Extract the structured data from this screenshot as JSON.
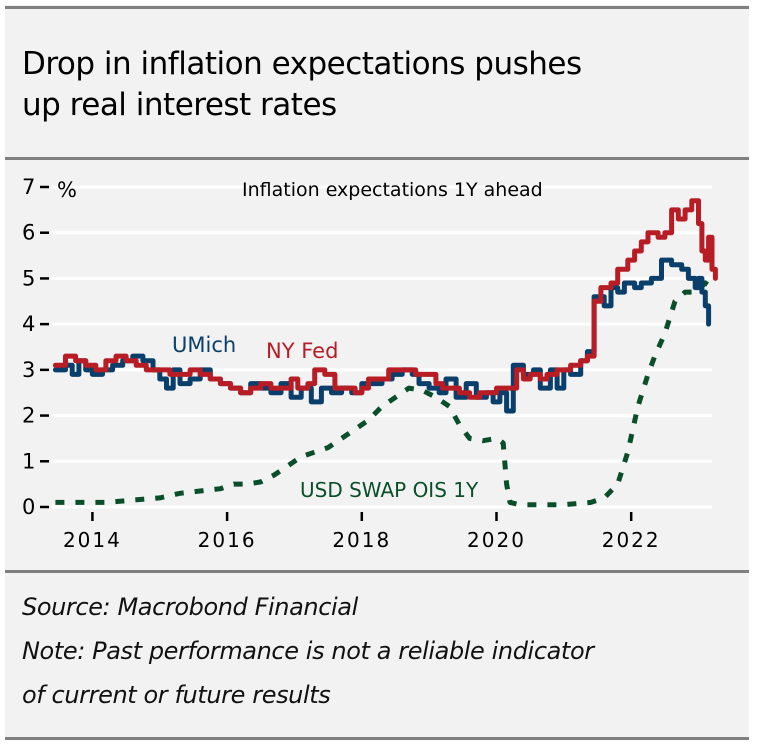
{
  "header": {
    "title_line1": "Drop in inflation expectations pushes",
    "title_line2": "up real interest rates"
  },
  "footer": {
    "source": "Source: Macrobond Financial",
    "note_line1": "Note: Past performance is not a reliable indicator",
    "note_line2": "of current or future results"
  },
  "colors": {
    "umich": "#0b3f6b",
    "nyfed": "#b81c25",
    "swap": "#0b4f2a",
    "grid": "#ffffff",
    "background": "#f2f2f2"
  },
  "chart_data": {
    "type": "line",
    "title": "Inflation expectations 1Y ahead",
    "ylabel": "%",
    "xlabel": "",
    "ylim": [
      0,
      7
    ],
    "xlim": [
      2013.4,
      2023.2
    ],
    "yticks": [
      0,
      1,
      2,
      3,
      4,
      5,
      6,
      7
    ],
    "ytick_labels": [
      "0",
      "1",
      "2",
      "3",
      "4",
      "5",
      "6",
      "7"
    ],
    "xticks": [
      2014,
      2016,
      2018,
      2020,
      2022
    ],
    "xtick_labels": [
      "2014",
      "2016",
      "2018",
      "2020",
      "2022"
    ],
    "grid": true,
    "legend": "inline-labels",
    "series": [
      {
        "name": "UMich",
        "style": "step",
        "points": [
          [
            2013.45,
            3.0
          ],
          [
            2013.6,
            3.1
          ],
          [
            2013.7,
            2.9
          ],
          [
            2013.8,
            3.2
          ],
          [
            2013.9,
            3.0
          ],
          [
            2014.0,
            2.9
          ],
          [
            2014.15,
            3.0
          ],
          [
            2014.3,
            3.1
          ],
          [
            2014.45,
            3.2
          ],
          [
            2014.6,
            3.3
          ],
          [
            2014.75,
            3.2
          ],
          [
            2014.9,
            3.0
          ],
          [
            2015.0,
            2.8
          ],
          [
            2015.1,
            2.6
          ],
          [
            2015.2,
            3.0
          ],
          [
            2015.3,
            2.7
          ],
          [
            2015.45,
            2.8
          ],
          [
            2015.6,
            3.0
          ],
          [
            2015.75,
            2.8
          ],
          [
            2015.9,
            2.7
          ],
          [
            2016.05,
            2.6
          ],
          [
            2016.2,
            2.5
          ],
          [
            2016.35,
            2.7
          ],
          [
            2016.5,
            2.6
          ],
          [
            2016.65,
            2.5
          ],
          [
            2016.8,
            2.7
          ],
          [
            2016.95,
            2.4
          ],
          [
            2017.1,
            2.6
          ],
          [
            2017.25,
            2.3
          ],
          [
            2017.4,
            2.6
          ],
          [
            2017.55,
            2.5
          ],
          [
            2017.7,
            2.6
          ],
          [
            2017.85,
            2.5
          ],
          [
            2018.0,
            2.7
          ],
          [
            2018.15,
            2.7
          ],
          [
            2018.3,
            2.8
          ],
          [
            2018.45,
            2.9
          ],
          [
            2018.6,
            3.0
          ],
          [
            2018.75,
            2.9
          ],
          [
            2018.85,
            2.7
          ],
          [
            2019.0,
            2.6
          ],
          [
            2019.15,
            2.5
          ],
          [
            2019.25,
            2.8
          ],
          [
            2019.4,
            2.4
          ],
          [
            2019.55,
            2.7
          ],
          [
            2019.7,
            2.4
          ],
          [
            2019.85,
            2.5
          ],
          [
            2019.95,
            2.3
          ],
          [
            2020.05,
            2.5
          ],
          [
            2020.15,
            2.1
          ],
          [
            2020.25,
            3.1
          ],
          [
            2020.4,
            2.9
          ],
          [
            2020.55,
            3.0
          ],
          [
            2020.65,
            2.6
          ],
          [
            2020.8,
            3.0
          ],
          [
            2020.9,
            2.6
          ],
          [
            2021.0,
            3.0
          ],
          [
            2021.1,
            2.9
          ],
          [
            2021.25,
            3.2
          ],
          [
            2021.35,
            3.4
          ],
          [
            2021.45,
            4.6
          ],
          [
            2021.6,
            4.4
          ],
          [
            2021.7,
            4.8
          ],
          [
            2021.8,
            4.7
          ],
          [
            2021.9,
            4.9
          ],
          [
            2022.05,
            4.8
          ],
          [
            2022.15,
            4.9
          ],
          [
            2022.3,
            5.0
          ],
          [
            2022.45,
            5.4
          ],
          [
            2022.6,
            5.3
          ],
          [
            2022.75,
            5.2
          ],
          [
            2022.85,
            5.0
          ],
          [
            2022.95,
            4.8
          ],
          [
            2023.0,
            5.0
          ],
          [
            2023.05,
            4.7
          ],
          [
            2023.1,
            4.4
          ],
          [
            2023.15,
            4.0
          ]
        ]
      },
      {
        "name": "NY Fed",
        "style": "step",
        "points": [
          [
            2013.45,
            3.1
          ],
          [
            2013.6,
            3.3
          ],
          [
            2013.75,
            3.2
          ],
          [
            2013.9,
            3.1
          ],
          [
            2014.05,
            3.0
          ],
          [
            2014.2,
            3.2
          ],
          [
            2014.35,
            3.3
          ],
          [
            2014.5,
            3.2
          ],
          [
            2014.65,
            3.1
          ],
          [
            2014.8,
            3.0
          ],
          [
            2015.0,
            3.0
          ],
          [
            2015.15,
            2.9
          ],
          [
            2015.3,
            2.9
          ],
          [
            2015.45,
            3.0
          ],
          [
            2015.6,
            2.9
          ],
          [
            2015.75,
            2.8
          ],
          [
            2015.9,
            2.7
          ],
          [
            2016.05,
            2.6
          ],
          [
            2016.2,
            2.5
          ],
          [
            2016.35,
            2.6
          ],
          [
            2016.5,
            2.7
          ],
          [
            2016.65,
            2.6
          ],
          [
            2016.8,
            2.6
          ],
          [
            2016.95,
            2.8
          ],
          [
            2017.05,
            2.6
          ],
          [
            2017.2,
            2.7
          ],
          [
            2017.3,
            3.0
          ],
          [
            2017.45,
            2.9
          ],
          [
            2017.6,
            2.6
          ],
          [
            2017.75,
            2.6
          ],
          [
            2017.9,
            2.5
          ],
          [
            2018.0,
            2.6
          ],
          [
            2018.1,
            2.8
          ],
          [
            2018.25,
            2.8
          ],
          [
            2018.4,
            3.0
          ],
          [
            2018.6,
            3.0
          ],
          [
            2018.8,
            2.9
          ],
          [
            2019.0,
            2.9
          ],
          [
            2019.1,
            2.7
          ],
          [
            2019.2,
            2.6
          ],
          [
            2019.35,
            2.6
          ],
          [
            2019.45,
            2.5
          ],
          [
            2019.6,
            2.4
          ],
          [
            2019.75,
            2.5
          ],
          [
            2019.9,
            2.5
          ],
          [
            2020.0,
            2.6
          ],
          [
            2020.1,
            2.6
          ],
          [
            2020.2,
            2.6
          ],
          [
            2020.3,
            3.0
          ],
          [
            2020.4,
            2.8
          ],
          [
            2020.5,
            2.9
          ],
          [
            2020.65,
            2.8
          ],
          [
            2020.75,
            2.9
          ],
          [
            2020.9,
            3.0
          ],
          [
            2021.0,
            3.0
          ],
          [
            2021.1,
            3.1
          ],
          [
            2021.25,
            3.2
          ],
          [
            2021.35,
            3.3
          ],
          [
            2021.45,
            4.5
          ],
          [
            2021.55,
            4.8
          ],
          [
            2021.7,
            4.9
          ],
          [
            2021.8,
            5.2
          ],
          [
            2021.95,
            5.4
          ],
          [
            2022.05,
            5.6
          ],
          [
            2022.15,
            5.8
          ],
          [
            2022.25,
            6.0
          ],
          [
            2022.4,
            5.9
          ],
          [
            2022.5,
            6.0
          ],
          [
            2022.6,
            6.5
          ],
          [
            2022.7,
            6.3
          ],
          [
            2022.8,
            6.5
          ],
          [
            2022.9,
            6.7
          ],
          [
            2023.0,
            6.2
          ],
          [
            2023.05,
            5.6
          ],
          [
            2023.1,
            5.4
          ],
          [
            2023.15,
            5.9
          ],
          [
            2023.2,
            5.2
          ],
          [
            2023.25,
            5.0
          ]
        ]
      },
      {
        "name": "USD SWAP OIS 1Y",
        "style": "dashed",
        "points": [
          [
            2013.45,
            0.1
          ],
          [
            2013.8,
            0.1
          ],
          [
            2014.2,
            0.1
          ],
          [
            2014.6,
            0.15
          ],
          [
            2015.0,
            0.2
          ],
          [
            2015.3,
            0.3
          ],
          [
            2015.6,
            0.35
          ],
          [
            2015.9,
            0.4
          ],
          [
            2016.1,
            0.5
          ],
          [
            2016.3,
            0.5
          ],
          [
            2016.5,
            0.55
          ],
          [
            2016.7,
            0.7
          ],
          [
            2016.9,
            0.9
          ],
          [
            2017.1,
            1.1
          ],
          [
            2017.3,
            1.2
          ],
          [
            2017.5,
            1.3
          ],
          [
            2017.7,
            1.5
          ],
          [
            2017.9,
            1.7
          ],
          [
            2018.1,
            1.9
          ],
          [
            2018.3,
            2.2
          ],
          [
            2018.5,
            2.4
          ],
          [
            2018.7,
            2.6
          ],
          [
            2018.9,
            2.55
          ],
          [
            2019.1,
            2.4
          ],
          [
            2019.3,
            2.2
          ],
          [
            2019.45,
            1.8
          ],
          [
            2019.6,
            1.5
          ],
          [
            2019.8,
            1.45
          ],
          [
            2020.0,
            1.5
          ],
          [
            2020.1,
            1.4
          ],
          [
            2020.15,
            0.5
          ],
          [
            2020.2,
            0.1
          ],
          [
            2020.35,
            0.05
          ],
          [
            2020.6,
            0.05
          ],
          [
            2021.0,
            0.05
          ],
          [
            2021.4,
            0.1
          ],
          [
            2021.6,
            0.2
          ],
          [
            2021.8,
            0.5
          ],
          [
            2021.95,
            1.2
          ],
          [
            2022.1,
            2.2
          ],
          [
            2022.25,
            2.9
          ],
          [
            2022.35,
            3.3
          ],
          [
            2022.5,
            3.8
          ],
          [
            2022.65,
            4.5
          ],
          [
            2022.8,
            4.7
          ],
          [
            2022.95,
            4.7
          ],
          [
            2023.1,
            4.9
          ],
          [
            2023.2,
            4.8
          ]
        ]
      }
    ],
    "annotations": [
      {
        "text": "UMich",
        "series": "UMich"
      },
      {
        "text": "NY Fed",
        "series": "NY Fed"
      },
      {
        "text": "USD SWAP OIS 1Y",
        "series": "USD SWAP OIS 1Y"
      }
    ]
  }
}
